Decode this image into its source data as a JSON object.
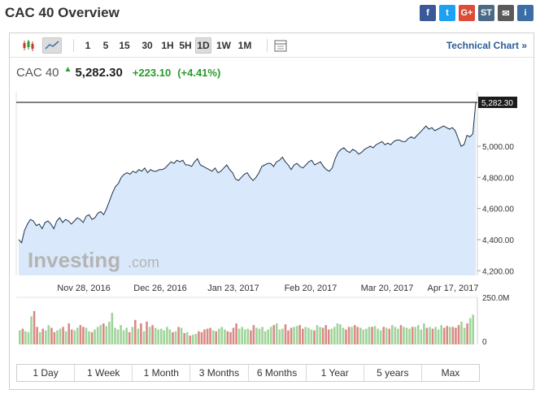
{
  "page": {
    "title": "CAC 40 Overview"
  },
  "share": [
    {
      "name": "facebook-icon",
      "glyph": "f",
      "color": "#3b5998"
    },
    {
      "name": "twitter-icon",
      "glyph": "t",
      "color": "#1da1f2"
    },
    {
      "name": "google-plus-icon",
      "glyph": "G+",
      "color": "#dd4b39"
    },
    {
      "name": "stocktwits-icon",
      "glyph": "ST",
      "color": "#4a6a86"
    },
    {
      "name": "email-icon",
      "glyph": "✉",
      "color": "#5a5a5a"
    },
    {
      "name": "print-icon",
      "glyph": "i",
      "color": "#3a6ea5"
    }
  ],
  "toolbar": {
    "intervals": [
      "1",
      "5",
      "15",
      "30",
      "1H",
      "5H",
      "1D",
      "1W",
      "1M"
    ],
    "active_interval": "1D",
    "technical_link": "Technical Chart »"
  },
  "quote": {
    "name": "CAC 40",
    "price": "5,282.30",
    "change": "+223.10",
    "change_pct": "(+4.41%)",
    "direction": "up"
  },
  "chart_data": {
    "type": "area",
    "x_ticks": [
      "Nov 28, 2016",
      "Dec 26, 2016",
      "Jan 23, 2017",
      "Feb 20, 2017",
      "Mar 20, 2017",
      "Apr 17, 2017"
    ],
    "y_ticks": [
      "4,200.00",
      "4,400.00",
      "4,600.00",
      "4,800.00",
      "5,000.00"
    ],
    "ylim": [
      4170,
      5350
    ],
    "last_value_label": "5,282.30",
    "last_value": 5282.3,
    "line_color": "#1f3346",
    "fill_color": "#d9e9fb",
    "watermark_main": "Investing",
    "watermark_suffix": ".com",
    "price_series": [
      4400,
      4380,
      4460,
      4500,
      4530,
      4520,
      4490,
      4500,
      4470,
      4510,
      4520,
      4500,
      4470,
      4520,
      4540,
      4510,
      4530,
      4520,
      4500,
      4520,
      4540,
      4530,
      4510,
      4550,
      4560,
      4530,
      4540,
      4570,
      4580,
      4560,
      4600,
      4650,
      4700,
      4740,
      4760,
      4800,
      4820,
      4830,
      4820,
      4840,
      4830,
      4850,
      4840,
      4860,
      4830,
      4850,
      4840,
      4840,
      4850,
      4850,
      4860,
      4880,
      4900,
      4890,
      4910,
      4900,
      4910,
      4880,
      4880,
      4870,
      4900,
      4920,
      4880,
      4870,
      4860,
      4850,
      4840,
      4860,
      4830,
      4840,
      4860,
      4880,
      4850,
      4830,
      4790,
      4780,
      4800,
      4820,
      4830,
      4800,
      4780,
      4800,
      4830,
      4870,
      4880,
      4890,
      4890,
      4870,
      4900,
      4910,
      4930,
      4900,
      4880,
      4850,
      4880,
      4890,
      4870,
      4860,
      4880,
      4900,
      4910,
      4880,
      4890,
      4900,
      4870,
      4850,
      4840,
      4860,
      4920,
      4960,
      4980,
      4990,
      4970,
      4960,
      4980,
      4970,
      4950,
      4960,
      4980,
      4990,
      5000,
      4990,
      5010,
      5020,
      5030,
      5010,
      5020,
      5010,
      5030,
      5040,
      5040,
      5030,
      5030,
      5050,
      5060,
      5050,
      5070,
      5090,
      5110,
      5130,
      5110,
      5120,
      5100,
      5110,
      5120,
      5130,
      5120,
      5110,
      5120,
      5100,
      5050,
      5000,
      5010,
      5070,
      5060,
      5080,
      5282
    ],
    "volume_label": "250.0M",
    "volume_zero_label": "0",
    "volume_max": 250,
    "volume_series": [
      80,
      90,
      75,
      70,
      160,
      190,
      100,
      70,
      90,
      80,
      110,
      95,
      70,
      80,
      90,
      100,
      75,
      120,
      85,
      80,
      95,
      110,
      100,
      95,
      75,
      70,
      85,
      100,
      110,
      120,
      105,
      130,
      180,
      95,
      85,
      110,
      80,
      95,
      70,
      100,
      140,
      90,
      120,
      75,
      130,
      100,
      110,
      95,
      85,
      90,
      80,
      100,
      85,
      70,
      75,
      100,
      95,
      65,
      70,
      50,
      55,
      60,
      75,
      70,
      85,
      90,
      95,
      80,
      75,
      90,
      100,
      85,
      75,
      70,
      95,
      120,
      90,
      100,
      85,
      90,
      80,
      110,
      95,
      90,
      100,
      75,
      85,
      100,
      110,
      120,
      85,
      90,
      115,
      80,
      95,
      100,
      105,
      110,
      90,
      100,
      95,
      85,
      80,
      110,
      100,
      95,
      110,
      85,
      90,
      100,
      120,
      115,
      95,
      85,
      100,
      100,
      110,
      100,
      95,
      85,
      90,
      100,
      100,
      105,
      90,
      80,
      100,
      95,
      90,
      110,
      100,
      90,
      110,
      100,
      95,
      90,
      100,
      100,
      110,
      85,
      120,
      95,
      100,
      90,
      100,
      85,
      110,
      95,
      105,
      100,
      100,
      95,
      110,
      130,
      95,
      120,
      150,
      170
    ]
  },
  "range_buttons": [
    "1 Day",
    "1 Week",
    "1 Month",
    "3 Months",
    "6 Months",
    "1 Year",
    "5 years",
    "Max"
  ]
}
